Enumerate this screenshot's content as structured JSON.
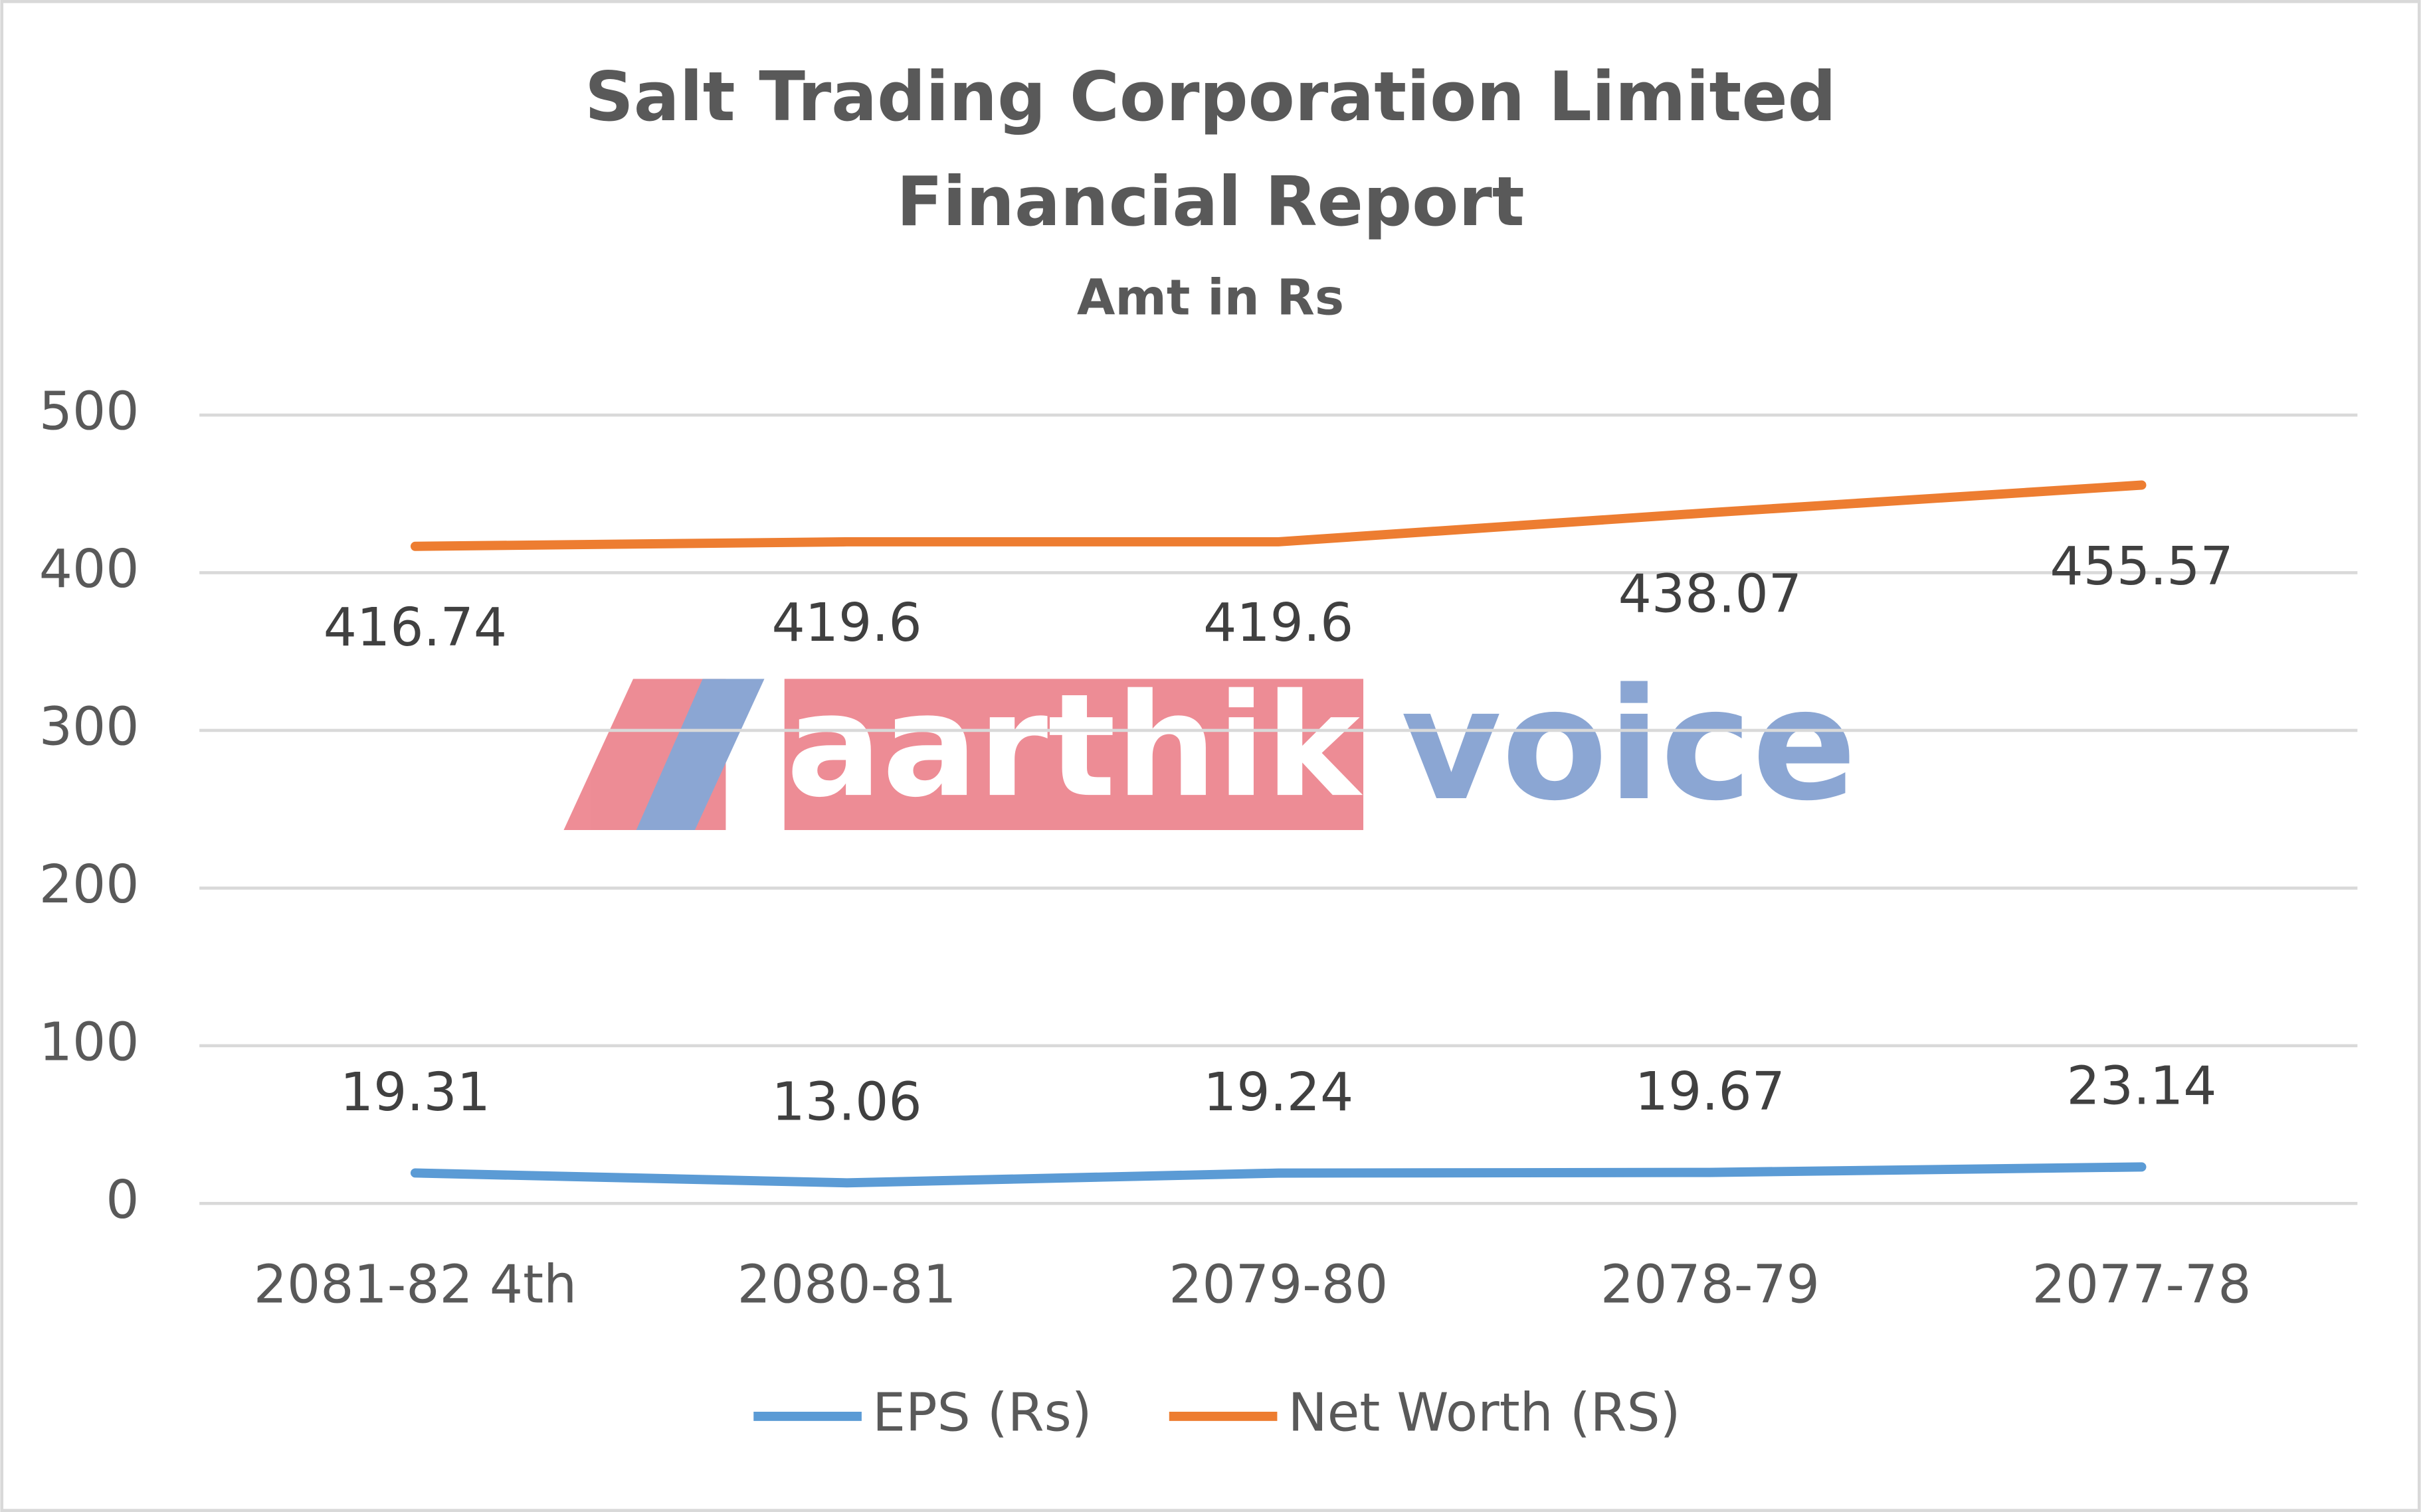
{
  "chart_data": {
    "type": "line",
    "title": [
      "Salt Trading Corporation Limited",
      "Financial Report"
    ],
    "subtitle": "Amt in Rs",
    "categories": [
      "2081-82 4th",
      "2080-81",
      "2079-80",
      "2078-79",
      "2077-78"
    ],
    "series": [
      {
        "name": "EPS (Rs)",
        "color": "#5b9bd5",
        "values": [
          19.31,
          13.06,
          19.24,
          19.67,
          23.14
        ]
      },
      {
        "name": "Net Worth (RS)",
        "color": "#ed7d31",
        "values": [
          416.74,
          419.6,
          419.6,
          438.07,
          455.57
        ]
      }
    ],
    "ylim": [
      0,
      500
    ],
    "yticks": [
      0,
      100,
      200,
      300,
      400,
      500
    ],
    "grid": true,
    "legend": "bottom",
    "watermark": [
      "aarthik",
      "voice"
    ]
  }
}
